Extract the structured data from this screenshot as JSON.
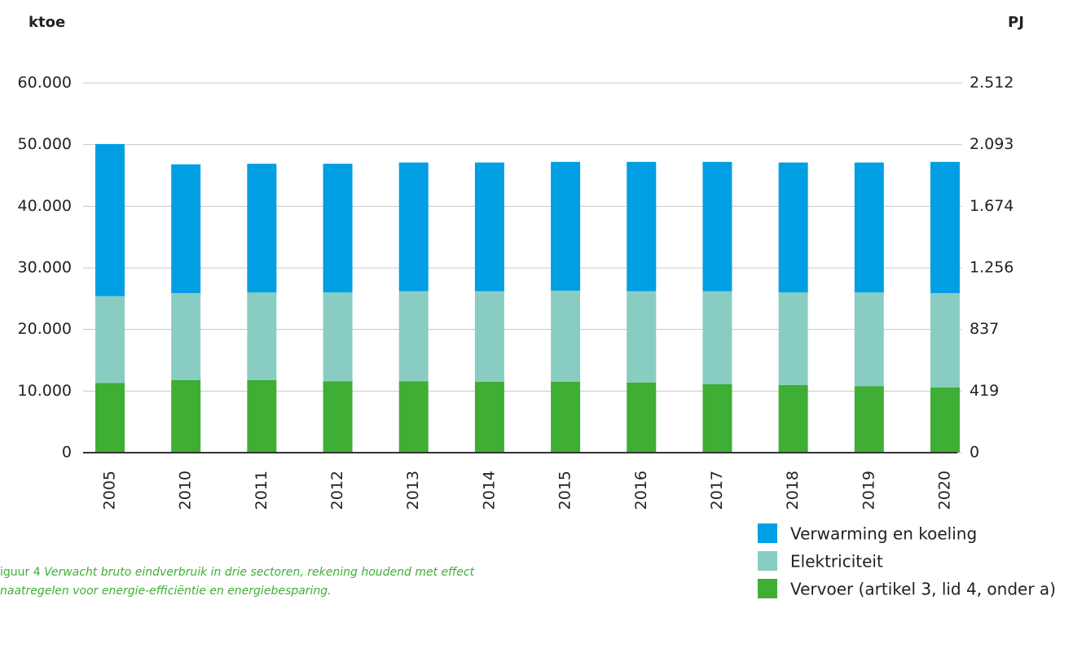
{
  "chart_data": {
    "type": "stacked_bar",
    "ylabel": "ktoe",
    "y2label": "PJ",
    "categories": [
      "2005",
      "2010",
      "2011",
      "2012",
      "2013",
      "2014",
      "2015",
      "2016",
      "2017",
      "2018",
      "2019",
      "2020"
    ],
    "series": [
      {
        "name": "Vervoer (artikel 3, lid 4, onder a)",
        "color": "#3fae35",
        "values": [
          11300,
          11800,
          11800,
          11600,
          11600,
          11500,
          11500,
          11400,
          11100,
          11000,
          10800,
          10600
        ]
      },
      {
        "name": "Elektriciteit",
        "color": "#89cdc2",
        "values": [
          14100,
          14100,
          14200,
          14400,
          14600,
          14700,
          14800,
          14800,
          15100,
          15000,
          15200,
          15300
        ]
      },
      {
        "name": "Verwarming en koeling",
        "color": "#009fe3",
        "values": [
          24700,
          20900,
          20900,
          20900,
          20900,
          20900,
          20900,
          21000,
          21000,
          21100,
          21100,
          21300
        ]
      }
    ],
    "ylim": [
      0,
      60000
    ],
    "yticks": [
      0,
      {
        "value": 10000,
        "label": "10.000"
      },
      {
        "value": 20000,
        "label": "20.000"
      },
      {
        "value": 30000,
        "label": "30.000"
      },
      {
        "value": 40000,
        "label": "40.000"
      },
      {
        "value": 50000,
        "label": "50.000"
      },
      {
        "value": 60000,
        "label": "60.000"
      }
    ],
    "y2lim": [
      0,
      2512
    ],
    "y2ticks": [
      0,
      419,
      837,
      {
        "value": 1256,
        "label": "1.256"
      },
      {
        "value": 1674,
        "label": "1.674"
      },
      {
        "value": 2093,
        "label": "2.093"
      },
      {
        "value": 2512,
        "label": "2.512"
      }
    ],
    "grid": true,
    "legend": "lower right",
    "caption": {
      "label": "iguur 4",
      "lines": [
        "Verwacht bruto eindverbruik in drie sectoren, rekening houdend met effect",
        "naatregelen voor energie-efficiëntie en energiebesparing."
      ]
    }
  }
}
